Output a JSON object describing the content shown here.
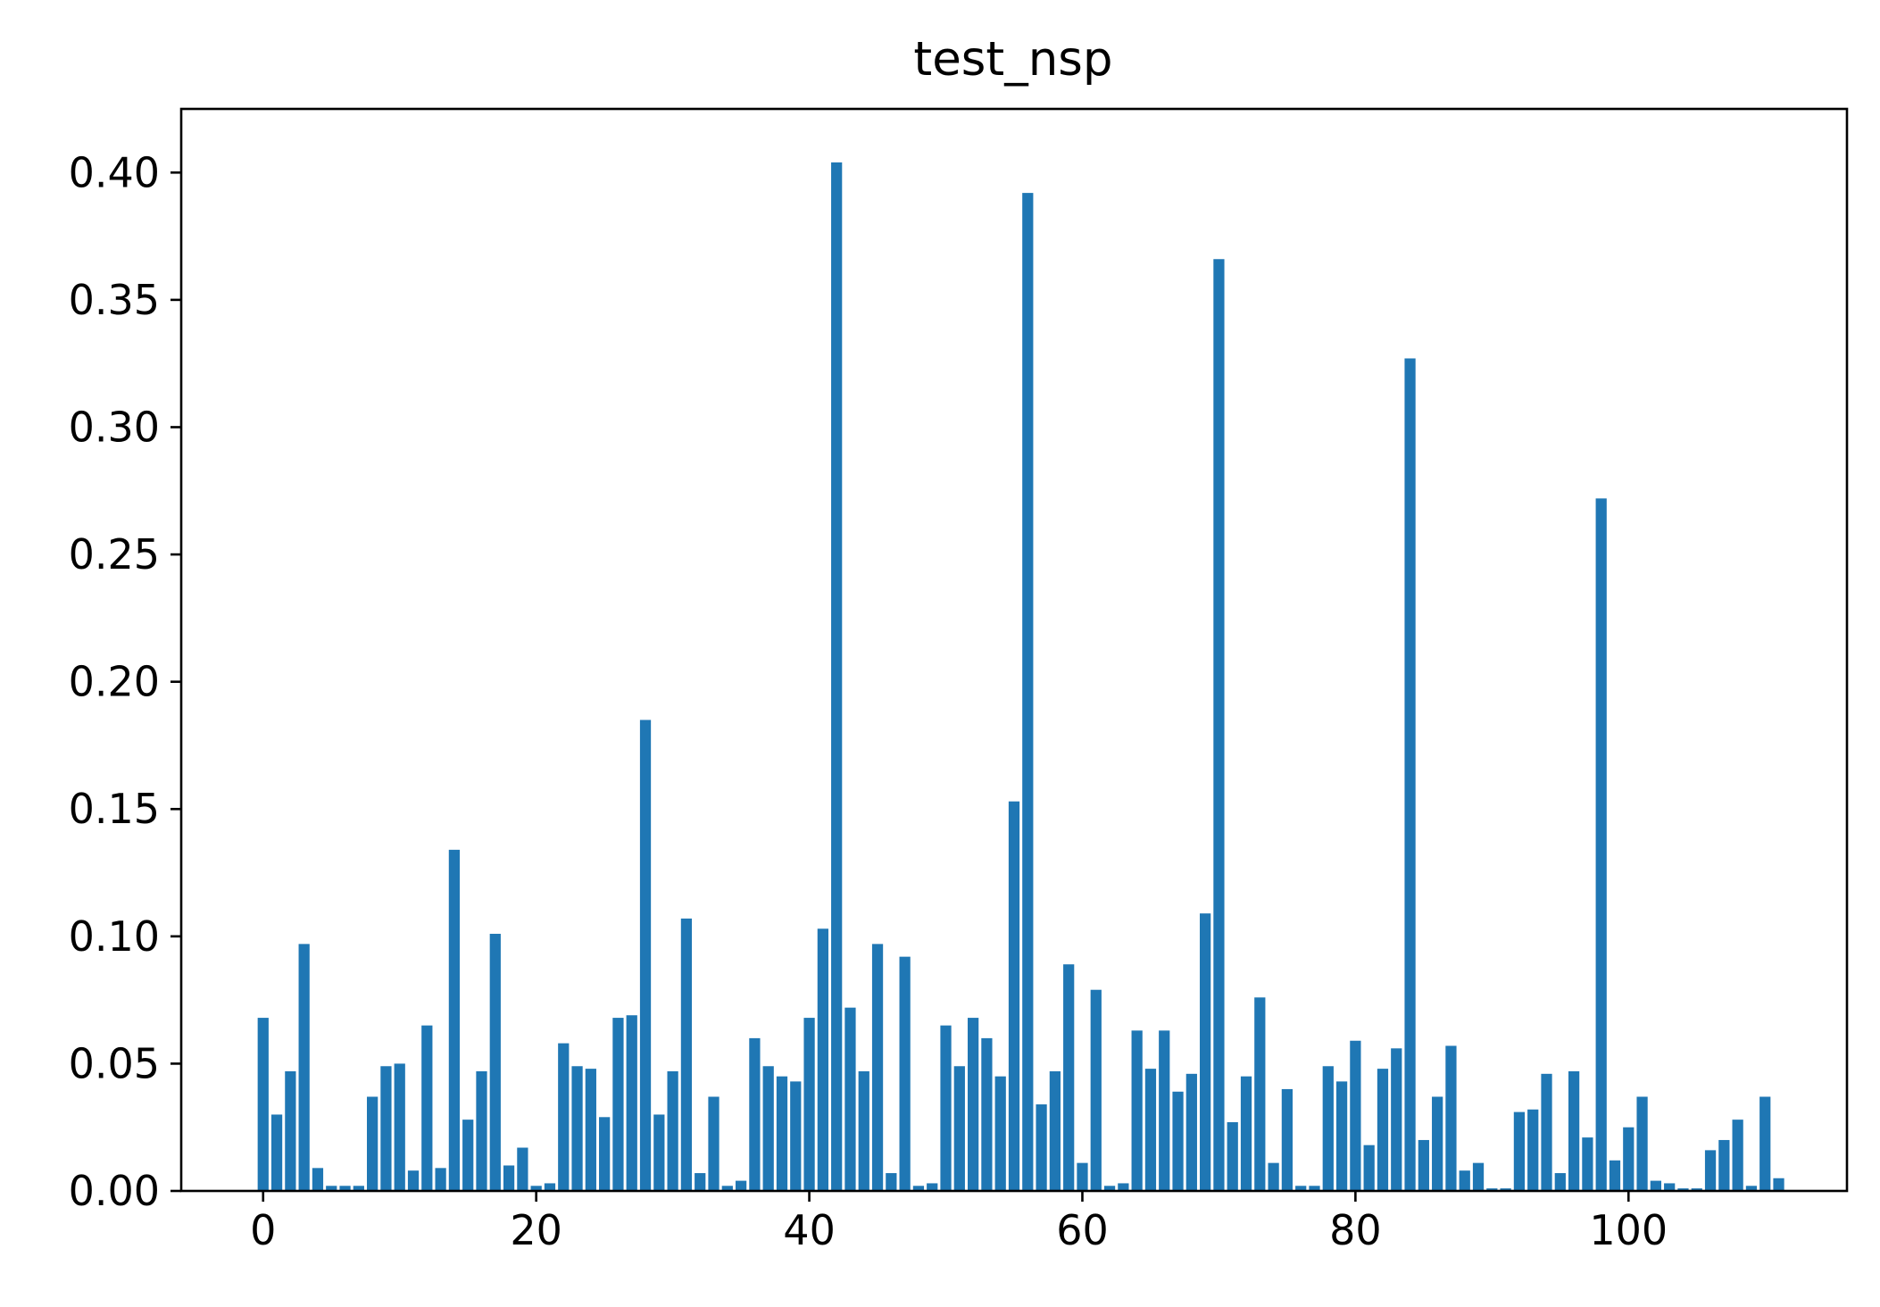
{
  "chart_data": {
    "type": "bar",
    "title": "test_nsp",
    "xlabel": "",
    "ylabel": "",
    "xlim": [
      -6,
      116
    ],
    "ylim": [
      0,
      0.425
    ],
    "x_ticks": [
      0,
      20,
      40,
      60,
      80,
      100
    ],
    "x_tick_labels": [
      "0",
      "20",
      "40",
      "60",
      "80",
      "100"
    ],
    "y_ticks": [
      0,
      0.05,
      0.1,
      0.15,
      0.2,
      0.25,
      0.3,
      0.35,
      0.4
    ],
    "y_tick_labels": [
      "0.00",
      "0.05",
      "0.10",
      "0.15",
      "0.20",
      "0.25",
      "0.30",
      "0.35",
      "0.40"
    ],
    "grid": false,
    "bar_color": "#1f77b4",
    "x": [
      0,
      1,
      2,
      3,
      4,
      5,
      6,
      7,
      8,
      9,
      10,
      11,
      12,
      13,
      14,
      15,
      16,
      17,
      18,
      19,
      20,
      21,
      22,
      23,
      24,
      25,
      26,
      27,
      28,
      29,
      30,
      31,
      32,
      33,
      34,
      35,
      36,
      37,
      38,
      39,
      40,
      41,
      42,
      43,
      44,
      45,
      46,
      47,
      48,
      49,
      50,
      51,
      52,
      53,
      54,
      55,
      56,
      57,
      58,
      59,
      60,
      61,
      62,
      63,
      64,
      65,
      66,
      67,
      68,
      69,
      70,
      71,
      72,
      73,
      74,
      75,
      76,
      77,
      78,
      79,
      80,
      81,
      82,
      83,
      84,
      85,
      86,
      87,
      88,
      89,
      90,
      91,
      92,
      93,
      94,
      95,
      96,
      97,
      98,
      99,
      100,
      101,
      102,
      103,
      104,
      105,
      106,
      107,
      108,
      109,
      110,
      111
    ],
    "values": [
      0.068,
      0.03,
      0.047,
      0.097,
      0.009,
      0.002,
      0.002,
      0.002,
      0.037,
      0.049,
      0.05,
      0.008,
      0.065,
      0.009,
      0.134,
      0.028,
      0.047,
      0.101,
      0.01,
      0.017,
      0.002,
      0.003,
      0.058,
      0.049,
      0.048,
      0.029,
      0.068,
      0.069,
      0.185,
      0.03,
      0.047,
      0.107,
      0.007,
      0.037,
      0.002,
      0.004,
      0.06,
      0.049,
      0.045,
      0.043,
      0.068,
      0.103,
      0.404,
      0.072,
      0.047,
      0.097,
      0.007,
      0.092,
      0.002,
      0.003,
      0.065,
      0.049,
      0.068,
      0.06,
      0.045,
      0.153,
      0.392,
      0.034,
      0.047,
      0.089,
      0.011,
      0.079,
      0.002,
      0.003,
      0.063,
      0.048,
      0.063,
      0.039,
      0.046,
      0.109,
      0.366,
      0.027,
      0.045,
      0.076,
      0.011,
      0.04,
      0.002,
      0.002,
      0.049,
      0.043,
      0.059,
      0.018,
      0.048,
      0.056,
      0.327,
      0.02,
      0.037,
      0.057,
      0.008,
      0.011,
      0.001,
      0.001,
      0.031,
      0.032,
      0.046,
      0.007,
      0.047,
      0.021,
      0.272,
      0.012,
      0.025,
      0.037,
      0.004,
      0.003,
      0.001,
      0.001,
      0.016,
      0.02,
      0.028,
      0.002,
      0.037,
      0.005
    ]
  }
}
